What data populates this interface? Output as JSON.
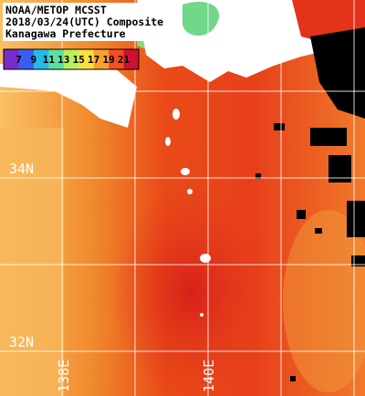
{
  "header": {
    "lines": [
      "NOAA/METOP MCSST",
      "2018/03/24(UTC) Composite",
      "Kanagawa Prefecture"
    ]
  },
  "colorbar": {
    "labels": [
      7,
      9,
      11,
      13,
      15,
      17,
      19,
      21
    ]
  },
  "grid": {
    "latitudes": [
      "34N",
      "32N"
    ],
    "longitudes": [
      "138E",
      "140E"
    ]
  }
}
